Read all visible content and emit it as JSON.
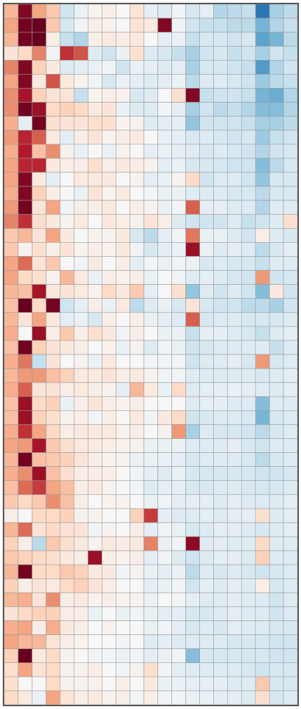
{
  "chart_data": {
    "type": "heatmap",
    "rows": 50,
    "cols": 21,
    "vmin": -3,
    "vmax": 3,
    "colormap": [
      "#053061",
      "#2166ac",
      "#4393c3",
      "#92c5de",
      "#d1e5f0",
      "#f7f7f7",
      "#fddbc7",
      "#f4a582",
      "#d6604d",
      "#b2182b",
      "#67001f"
    ],
    "grid_color": "#9a9a9a",
    "values": [
      [
        1.0,
        2.8,
        1.2,
        0.8,
        -0.6,
        -0.2,
        0.1,
        0.2,
        0.0,
        0.4,
        -0.3,
        -0.4,
        -0.1,
        -0.5,
        -0.3,
        -0.9,
        -0.8,
        -0.7,
        -2.2,
        -1.0,
        -0.8
      ],
      [
        1.2,
        2.9,
        3.0,
        0.8,
        -0.5,
        -0.1,
        0.2,
        0.1,
        0.0,
        0.4,
        0.3,
        2.8,
        -0.1,
        -0.6,
        -0.7,
        -0.7,
        -0.8,
        -0.8,
        -1.4,
        -0.9,
        -0.7
      ],
      [
        1.0,
        2.9,
        3.0,
        0.2,
        -0.7,
        -0.9,
        0.2,
        0.3,
        0.2,
        0.3,
        0.0,
        -0.3,
        -0.2,
        -0.7,
        -0.5,
        -0.5,
        -0.6,
        -0.5,
        -1.6,
        -1.4,
        -0.8
      ],
      [
        0.4,
        0.6,
        1.5,
        -0.1,
        2.2,
        1.9,
        -0.4,
        -0.6,
        -0.2,
        0.5,
        -0.4,
        -0.5,
        -0.7,
        -1.0,
        -0.6,
        -0.5,
        -0.7,
        -0.6,
        -1.0,
        -0.6,
        -0.7
      ],
      [
        1.5,
        2.8,
        0.7,
        0.3,
        -0.4,
        -0.3,
        -0.2,
        -0.1,
        -0.6,
        -0.2,
        -0.3,
        -0.4,
        -0.3,
        -1.0,
        -0.5,
        -0.5,
        -0.6,
        -0.7,
        -1.7,
        -0.9,
        -0.6
      ],
      [
        1.2,
        2.8,
        0.3,
        1.9,
        0.3,
        0.1,
        -0.1,
        -0.5,
        -0.2,
        -0.3,
        -0.4,
        -0.3,
        -0.2,
        -0.8,
        -0.4,
        -0.4,
        -0.5,
        -0.6,
        -1.1,
        -0.8,
        -0.7
      ],
      [
        1.4,
        2.5,
        0.7,
        0.4,
        0.4,
        -0.7,
        0.1,
        0.2,
        0.1,
        -0.5,
        -0.4,
        0.0,
        0.5,
        2.8,
        -0.7,
        -0.6,
        -0.6,
        -0.7,
        -1.4,
        -1.5,
        -0.9
      ],
      [
        1.4,
        2.9,
        2.6,
        0.6,
        0.7,
        0.6,
        0.3,
        0.4,
        -0.2,
        -0.4,
        -0.4,
        -0.1,
        -0.3,
        -1.0,
        -0.6,
        -0.8,
        -0.7,
        -0.9,
        -1.3,
        -1.3,
        -0.9
      ],
      [
        1.1,
        -0.3,
        2.9,
        0.5,
        0.4,
        0.4,
        0.5,
        0.5,
        0.1,
        0.1,
        -0.4,
        -0.3,
        -0.3,
        -1.2,
        -0.6,
        -0.6,
        -0.6,
        -0.7,
        -1.0,
        -1.0,
        -0.8
      ],
      [
        1.3,
        2.3,
        1.8,
        0.3,
        -0.3,
        0.2,
        0.4,
        0.1,
        0.2,
        0.3,
        0.0,
        -0.2,
        -0.3,
        -0.5,
        -0.4,
        -0.5,
        -0.6,
        -0.5,
        -1.1,
        -0.7,
        -0.6
      ],
      [
        1.1,
        2.4,
        0.9,
        1.4,
        0.1,
        -0.2,
        0.0,
        -0.2,
        0.1,
        0.0,
        -0.3,
        -0.2,
        -0.3,
        -0.4,
        -0.5,
        -0.4,
        -0.5,
        -0.6,
        -0.9,
        -0.6,
        -0.5
      ],
      [
        1.2,
        2.3,
        2.3,
        0.3,
        0.2,
        0.2,
        0.5,
        0.2,
        0.3,
        0.2,
        0.1,
        -0.3,
        -0.2,
        -0.5,
        -0.5,
        -0.5,
        -0.6,
        -0.6,
        -1.3,
        -0.8,
        -0.5
      ],
      [
        1.2,
        2.8,
        0.3,
        -0.3,
        0.0,
        0.3,
        0.3,
        0.3,
        0.0,
        0.1,
        -0.3,
        -0.2,
        0.1,
        0.6,
        -0.6,
        -0.4,
        -0.4,
        -0.6,
        -1.2,
        -0.5,
        -0.5
      ],
      [
        1.1,
        2.8,
        0.7,
        0.2,
        0.0,
        -0.2,
        0.4,
        0.1,
        0.3,
        0.0,
        -0.1,
        -0.2,
        -0.2,
        -0.4,
        -0.4,
        -0.4,
        -0.5,
        -0.5,
        -0.8,
        -0.5,
        -0.5
      ],
      [
        1.3,
        2.9,
        0.4,
        1.2,
        -0.1,
        0.2,
        0.2,
        0.3,
        0.0,
        0.2,
        0.1,
        -0.2,
        -0.1,
        1.8,
        -0.3,
        -0.3,
        -0.4,
        -0.4,
        -0.9,
        -0.4,
        -0.4
      ],
      [
        1.5,
        2.2,
        0.5,
        0.3,
        0.1,
        0.3,
        0.0,
        0.3,
        0.2,
        0.1,
        0.4,
        0.2,
        -0.4,
        -0.6,
        -0.6,
        -0.6,
        -0.4,
        -0.7,
        -0.6,
        -0.4,
        0.5
      ],
      [
        0.8,
        1.0,
        0.4,
        1.2,
        0.3,
        0.0,
        0.1,
        0.1,
        0.3,
        -0.5,
        -0.8,
        -0.3,
        -0.1,
        1.6,
        -0.2,
        -0.2,
        -0.4,
        -0.6,
        0.2,
        -0.4,
        -0.5
      ],
      [
        0.8,
        0.1,
        0.5,
        0.2,
        0.4,
        0.1,
        0.2,
        0.1,
        0.3,
        -0.1,
        -0.5,
        -0.3,
        -0.2,
        2.6,
        -0.2,
        -0.4,
        -0.3,
        -0.4,
        -0.8,
        -0.5,
        -0.3
      ],
      [
        1.2,
        1.7,
        0.4,
        0.8,
        0.0,
        -0.1,
        0.3,
        0.0,
        0.2,
        -0.3,
        -0.1,
        -0.2,
        -0.1,
        -0.2,
        -0.5,
        -0.4,
        -0.5,
        -0.5,
        -0.7,
        -0.4,
        -0.4
      ],
      [
        1.2,
        0.6,
        0.5,
        0.1,
        1.0,
        0.3,
        -0.2,
        0.2,
        0.1,
        0.2,
        -0.2,
        0.0,
        -0.1,
        -0.4,
        -0.3,
        -0.4,
        -0.5,
        -0.6,
        1.3,
        -0.6,
        -0.5
      ],
      [
        1.0,
        0.9,
        2.5,
        0.3,
        0.4,
        0.3,
        0.1,
        0.6,
        0.3,
        0.8,
        -0.3,
        0.0,
        0.5,
        -1.2,
        -0.4,
        -0.6,
        -0.4,
        -0.6,
        -1.3,
        0.3,
        -0.6
      ],
      [
        0.9,
        3.0,
        0.6,
        2.9,
        -0.6,
        -0.3,
        0.2,
        -0.2,
        0.3,
        -0.8,
        -0.4,
        -0.2,
        -0.5,
        0.4,
        -0.5,
        -0.6,
        -0.6,
        -0.8,
        -0.8,
        -1.0,
        -0.6
      ],
      [
        1.0,
        0.4,
        1.2,
        0.3,
        -0.3,
        -0.2,
        -0.5,
        0.2,
        0.0,
        0.2,
        -0.2,
        -0.3,
        -0.4,
        1.8,
        -0.5,
        -0.4,
        -0.4,
        -0.5,
        -0.5,
        -0.5,
        -0.4
      ],
      [
        1.1,
        0.0,
        2.6,
        0.2,
        0.8,
        0.2,
        0.5,
        0.3,
        -0.1,
        0.2,
        0.0,
        -0.2,
        -0.2,
        -0.7,
        -0.3,
        -0.3,
        -0.4,
        -0.5,
        -0.7,
        -0.4,
        -0.3
      ],
      [
        0.9,
        2.9,
        0.7,
        0.4,
        0.3,
        0.2,
        0.0,
        0.1,
        -0.2,
        0.1,
        -0.4,
        -0.1,
        -0.2,
        -0.6,
        -0.5,
        -0.4,
        -0.4,
        -0.4,
        -0.4,
        -0.7,
        -0.4
      ],
      [
        1.1,
        1.6,
        -0.7,
        0.4,
        0.0,
        0.1,
        -0.2,
        0.3,
        0.0,
        0.0,
        -0.1,
        -0.1,
        -0.1,
        -0.6,
        -0.4,
        -0.4,
        -0.3,
        -0.5,
        1.3,
        -0.5,
        -0.4
      ],
      [
        1.0,
        1.3,
        1.3,
        0.9,
        0.7,
        0.3,
        0.3,
        0.4,
        0.2,
        0.3,
        0.1,
        -0.1,
        -0.1,
        -0.4,
        -0.4,
        -0.4,
        -0.4,
        -0.4,
        -0.5,
        -0.4,
        -0.3
      ],
      [
        1.1,
        1.8,
        0.4,
        0.4,
        0.2,
        0.3,
        0.2,
        0.1,
        -0.3,
        1.0,
        0.3,
        -0.2,
        0.6,
        -0.4,
        -0.3,
        -0.3,
        -0.2,
        -0.3,
        -0.4,
        -0.4,
        -0.3
      ],
      [
        0.9,
        2.6,
        0.6,
        0.7,
        -0.2,
        0.2,
        0.4,
        0.2,
        0.1,
        0.2,
        0.0,
        0.0,
        0.0,
        -0.4,
        -0.3,
        -0.3,
        -0.4,
        -0.4,
        -1.3,
        -0.4,
        -0.4
      ],
      [
        0.9,
        2.6,
        0.7,
        0.5,
        0.1,
        0.2,
        -0.1,
        0.2,
        0.0,
        0.3,
        -0.1,
        0.3,
        0.6,
        -0.6,
        -0.5,
        -0.4,
        -0.4,
        -0.5,
        -1.4,
        -0.5,
        -0.4
      ],
      [
        1.1,
        2.2,
        1.2,
        0.6,
        0.2,
        0.3,
        0.3,
        0.3,
        0.1,
        0.2,
        0.0,
        0.1,
        1.3,
        -1.0,
        -0.4,
        -0.5,
        -0.5,
        -0.6,
        -0.8,
        -0.5,
        -0.4
      ],
      [
        1.2,
        1.3,
        2.5,
        0.8,
        0.5,
        0.3,
        0.3,
        0.2,
        0.1,
        0.1,
        -0.2,
        -0.2,
        -0.2,
        -0.4,
        -0.4,
        -0.4,
        -0.3,
        -0.5,
        -0.6,
        -0.4,
        -0.4
      ],
      [
        1.0,
        2.9,
        0.9,
        0.8,
        0.7,
        0.4,
        0.2,
        0.1,
        0.1,
        -0.2,
        -0.2,
        -0.2,
        -0.3,
        -0.5,
        -0.4,
        -0.4,
        -0.4,
        -0.5,
        -0.8,
        -0.5,
        -0.4
      ],
      [
        1.1,
        1.4,
        2.6,
        0.9,
        0.5,
        0.2,
        0.2,
        0.2,
        0.0,
        -0.1,
        -0.3,
        -0.4,
        -0.2,
        -0.5,
        -0.5,
        -0.5,
        -0.5,
        -0.5,
        -0.6,
        -0.6,
        -0.5
      ],
      [
        0.9,
        1.7,
        2.1,
        1.2,
        0.9,
        0.2,
        0.3,
        0.1,
        0.0,
        -0.1,
        -0.4,
        -0.3,
        -0.3,
        -0.5,
        -0.5,
        -0.4,
        -0.4,
        -0.5,
        -0.5,
        -0.5,
        -0.4
      ],
      [
        0.8,
        0.6,
        0.8,
        1.4,
        0.9,
        0.2,
        0.0,
        0.1,
        0.1,
        0.0,
        -0.2,
        -0.1,
        -0.3,
        -0.3,
        -0.3,
        -0.4,
        -0.3,
        -0.4,
        -0.4,
        -0.4,
        -0.3
      ],
      [
        0.2,
        0.0,
        0.6,
        0.6,
        0.7,
        0.1,
        0.1,
        0.0,
        0.0,
        0.7,
        2.1,
        -0.3,
        -0.4,
        -0.4,
        -0.3,
        -0.4,
        -0.3,
        -0.3,
        0.5,
        -0.4,
        -0.3
      ],
      [
        1.0,
        1.7,
        0.4,
        0.6,
        0.4,
        0.4,
        -0.1,
        0.1,
        0.0,
        0.2,
        -0.3,
        -0.1,
        -0.2,
        -0.5,
        -0.4,
        -0.3,
        -0.3,
        -0.4,
        -0.5,
        -0.4,
        -0.3
      ],
      [
        0.7,
        0.2,
        -0.8,
        0.8,
        0.5,
        0.3,
        0.1,
        0.3,
        0.2,
        0.3,
        1.5,
        -0.2,
        -0.1,
        2.7,
        -0.4,
        -0.3,
        -0.4,
        -0.4,
        0.6,
        -0.4,
        -0.4
      ],
      [
        0.8,
        0.7,
        0.6,
        0.5,
        0.3,
        0.2,
        2.6,
        0.2,
        0.1,
        0.2,
        -0.3,
        -0.1,
        -0.4,
        -0.6,
        -0.4,
        -0.3,
        -0.3,
        -0.4,
        0.7,
        -0.4,
        -0.4
      ],
      [
        1.0,
        2.9,
        0.6,
        0.6,
        0.8,
        0.7,
        0.3,
        0.3,
        -0.1,
        0.1,
        -0.2,
        -0.3,
        -0.2,
        -0.8,
        -0.4,
        -0.5,
        -0.4,
        -0.5,
        -0.6,
        -0.5,
        -0.4
      ],
      [
        0.7,
        0.2,
        0.4,
        0.3,
        0.6,
        0.7,
        0.4,
        0.2,
        0.0,
        0.0,
        -0.3,
        -0.2,
        -0.1,
        -0.6,
        -0.3,
        -0.4,
        -0.3,
        -0.4,
        0.2,
        -0.5,
        -0.4
      ],
      [
        1.0,
        1.1,
        0.4,
        1.4,
        0.2,
        0.3,
        0.1,
        0.2,
        0.1,
        0.1,
        -0.2,
        0.0,
        -0.1,
        -0.3,
        -0.4,
        -0.4,
        -0.3,
        -0.4,
        -0.4,
        -0.6,
        -0.4
      ],
      [
        0.4,
        0.6,
        0.7,
        0.7,
        0.2,
        0.2,
        -0.2,
        0.0,
        -0.2,
        -0.1,
        -0.2,
        -0.3,
        -0.3,
        -0.5,
        -0.5,
        -0.4,
        -0.3,
        -0.4,
        -0.4,
        -0.6,
        -0.4
      ],
      [
        1.1,
        1.2,
        0.2,
        1.1,
        0.3,
        0.2,
        0.0,
        0.1,
        0.0,
        0.0,
        -0.2,
        -0.1,
        -0.3,
        -0.5,
        -0.4,
        -0.5,
        -0.3,
        -0.4,
        -0.4,
        -0.5,
        -0.5
      ],
      [
        1.2,
        1.0,
        1.0,
        0.4,
        0.2,
        0.1,
        0.0,
        0.0,
        -0.1,
        0.0,
        -0.4,
        -0.3,
        -0.4,
        -0.4,
        -0.4,
        -0.4,
        -0.5,
        -0.5,
        -0.5,
        -0.6,
        -0.6
      ],
      [
        0.7,
        3.0,
        0.3,
        0.6,
        0.1,
        0.0,
        -0.1,
        -0.1,
        -0.2,
        -0.1,
        -0.3,
        -0.2,
        -0.1,
        -1.3,
        -0.5,
        -0.5,
        -0.5,
        -0.5,
        -0.5,
        -0.6,
        -0.6
      ],
      [
        0.5,
        1.2,
        0.4,
        0.6,
        0.1,
        0.1,
        0.2,
        0.0,
        -0.1,
        0.1,
        0.5,
        -0.1,
        -0.3,
        -0.4,
        -0.4,
        -0.4,
        -0.4,
        -0.5,
        -0.6,
        -0.5,
        -0.5
      ],
      [
        0.5,
        0.0,
        0.0,
        0.6,
        0.1,
        0.1,
        0.1,
        0.0,
        0.2,
        0.0,
        0.3,
        -0.2,
        -0.2,
        -0.3,
        -0.3,
        -0.3,
        -0.4,
        -0.4,
        0.8,
        -0.5,
        -0.5
      ],
      [
        0.6,
        0.3,
        -0.2,
        1.2,
        0.4,
        0.2,
        0.3,
        0.1,
        0.2,
        -0.1,
        0.2,
        -0.1,
        -0.1,
        -0.2,
        -0.2,
        -0.3,
        -0.3,
        -0.4,
        0.5,
        -0.5,
        -0.4
      ]
    ]
  }
}
